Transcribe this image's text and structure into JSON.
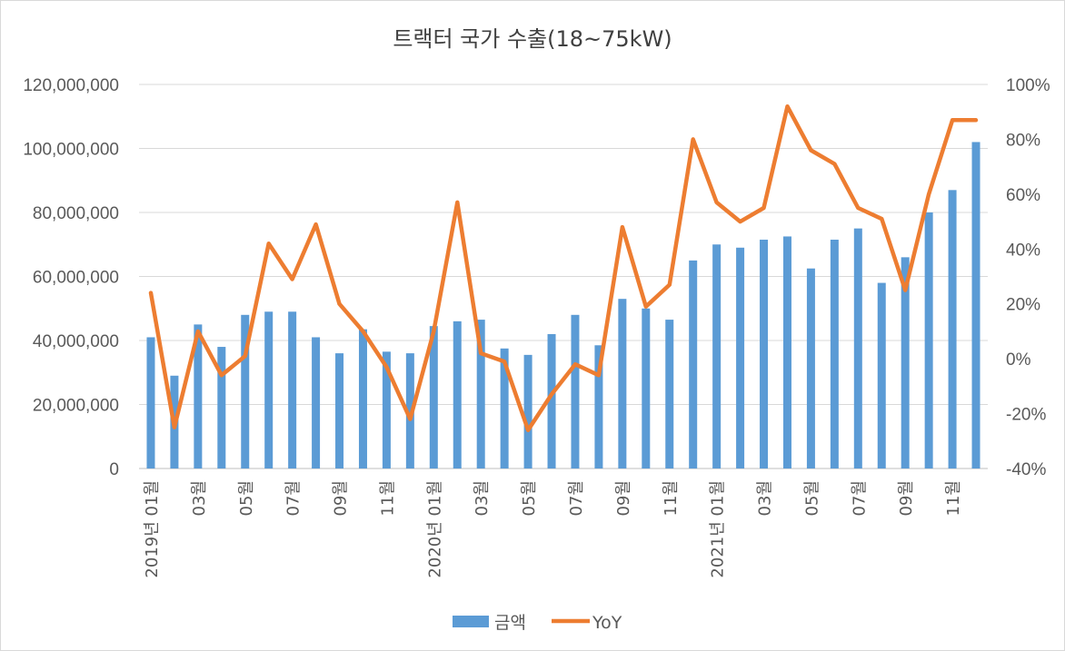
{
  "chart_data": {
    "type": "bar+line",
    "title": "트랙터 국가 수출(18~75kW)",
    "categories": [
      "2019년 01월",
      "02월",
      "03월",
      "04월",
      "05월",
      "06월",
      "07월",
      "08월",
      "09월",
      "10월",
      "11월",
      "12월",
      "2020년 01월",
      "02월",
      "03월",
      "04월",
      "05월",
      "06월",
      "07월",
      "08월",
      "09월",
      "10월",
      "11월",
      "12월",
      "2021년 01월",
      "02월",
      "03월",
      "04월",
      "05월",
      "06월",
      "07월",
      "08월",
      "09월",
      "10월",
      "11월",
      "12월"
    ],
    "x_tick_labels": [
      "2019년 01월",
      "",
      "03월",
      "",
      "05월",
      "",
      "07월",
      "",
      "09월",
      "",
      "11월",
      "",
      "2020년 01월",
      "",
      "03월",
      "",
      "05월",
      "",
      "07월",
      "",
      "09월",
      "",
      "11월",
      "",
      "2021년 01월",
      "",
      "03월",
      "",
      "05월",
      "",
      "07월",
      "",
      "09월",
      "",
      "11월",
      ""
    ],
    "series": [
      {
        "name": "금액",
        "type": "bar",
        "axis": "left",
        "color": "#5b9bd5",
        "values": [
          41000000,
          29000000,
          45000000,
          38000000,
          48000000,
          49000000,
          49000000,
          41000000,
          36000000,
          43500000,
          36500000,
          36000000,
          44500000,
          46000000,
          46500000,
          37500000,
          35500000,
          42000000,
          48000000,
          38500000,
          53000000,
          50000000,
          46500000,
          65000000,
          70000000,
          69000000,
          71500000,
          72500000,
          62500000,
          71500000,
          75000000,
          58000000,
          66000000,
          80000000,
          87000000,
          102000000
        ]
      },
      {
        "name": "YoY",
        "type": "line",
        "axis": "right",
        "color": "#ed7d31",
        "values": [
          0.24,
          -0.25,
          0.1,
          -0.06,
          0.01,
          0.42,
          0.29,
          0.49,
          0.2,
          0.1,
          -0.03,
          -0.22,
          0.1,
          0.57,
          0.02,
          -0.01,
          -0.26,
          -0.13,
          -0.02,
          -0.06,
          0.48,
          0.19,
          0.27,
          0.8,
          0.57,
          0.5,
          0.55,
          0.92,
          0.76,
          0.71,
          0.55,
          0.51,
          0.25,
          0.6,
          0.87,
          0.87
        ]
      }
    ],
    "y_left": {
      "min": 0,
      "max": 120000000,
      "ticks": [
        "0",
        "20,000,000",
        "40,000,000",
        "60,000,000",
        "80,000,000",
        "100,000,000",
        "120,000,000"
      ]
    },
    "y_right": {
      "min": -0.4,
      "max": 1.0,
      "ticks": [
        "-40%",
        "-20%",
        "0%",
        "20%",
        "40%",
        "60%",
        "80%",
        "100%"
      ]
    },
    "grid": true,
    "legend_position": "bottom"
  }
}
